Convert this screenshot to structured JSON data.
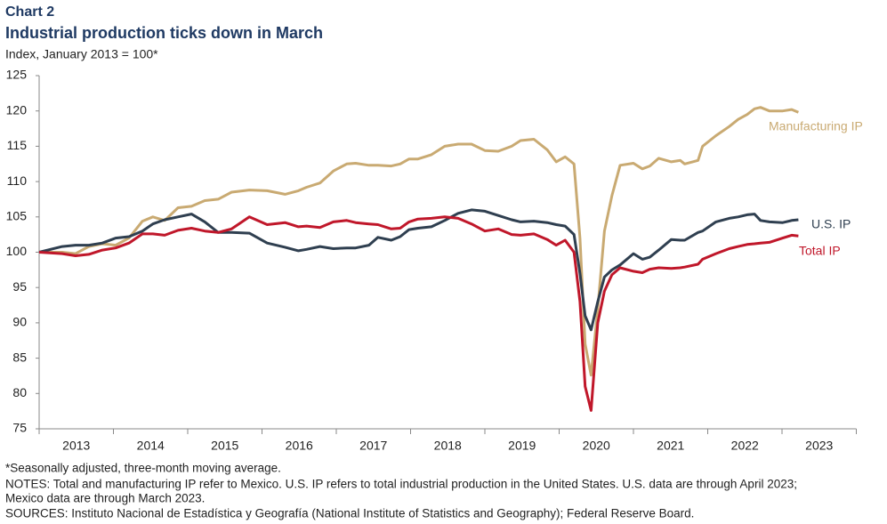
{
  "chart_data": {
    "type": "line",
    "chart_label": "Chart 2",
    "title": "Industrial production ticks down in March",
    "subtitle": "Index, January 2013 = 100*",
    "x": [
      2013,
      2013.31,
      2013.49,
      2013.67,
      2013.85,
      2014.03,
      2014.21,
      2014.39,
      2014.53,
      2014.69,
      2014.87,
      2015.05,
      2015.23,
      2015.41,
      2015.59,
      2015.83,
      2016.07,
      2016.31,
      2016.49,
      2016.6,
      2016.78,
      2016.96,
      2017.14,
      2017.26,
      2017.44,
      2017.56,
      2017.74,
      2017.86,
      2017.98,
      2018.1,
      2018.28,
      2018.46,
      2018.64,
      2018.82,
      2019,
      2019.18,
      2019.36,
      2019.48,
      2019.66,
      2019.84,
      2019.96,
      2020.08,
      2020.2,
      2020.28,
      2020.35,
      2020.43,
      2020.52,
      2020.61,
      2020.71,
      2020.82,
      2021,
      2021.12,
      2021.22,
      2021.34,
      2021.51,
      2021.63,
      2021.69,
      2021.87,
      2021.93,
      2022.11,
      2022.29,
      2022.41,
      2022.53,
      2022.63,
      2022.71,
      2022.83,
      2023.01,
      2023.13,
      2023.22
    ],
    "series": [
      {
        "name": "Manufacturing IP",
        "color": "#c9aa72",
        "values": [
          100,
          100,
          99.8,
          100.8,
          101.2,
          101,
          102,
          104.4,
          105,
          104.5,
          106.3,
          106.5,
          107.3,
          107.5,
          108.5,
          108.8,
          108.7,
          108.2,
          108.7,
          109.2,
          109.8,
          111.5,
          112.5,
          112.6,
          112.3,
          112.3,
          112.2,
          112.5,
          113.2,
          113.2,
          113.8,
          115,
          115.3,
          115.3,
          114.4,
          114.3,
          115,
          115.8,
          116,
          114.5,
          112.8,
          113.5,
          112.5,
          102,
          87,
          82.6,
          92,
          103,
          108,
          112.3,
          112.6,
          111.8,
          112.2,
          113.3,
          112.8,
          113,
          112.5,
          113,
          115,
          116.5,
          117.8,
          118.8,
          119.5,
          120.3,
          120.5,
          120,
          120,
          120.2,
          119.8
        ]
      },
      {
        "name": "U.S. IP",
        "color": "#2f3f50",
        "values": [
          100,
          100.8,
          101,
          101,
          101.3,
          102,
          102.2,
          103,
          104,
          104.6,
          105,
          105.4,
          104.3,
          102.8,
          102.8,
          102.7,
          101.3,
          100.7,
          100.2,
          100.4,
          100.8,
          100.5,
          100.6,
          100.6,
          101,
          102.1,
          101.7,
          102.2,
          103.2,
          103.4,
          103.6,
          104.5,
          105.5,
          106,
          105.8,
          105.2,
          104.6,
          104.3,
          104.4,
          104.2,
          103.9,
          103.7,
          102.5,
          97,
          91,
          89,
          93,
          96.5,
          97.5,
          98.2,
          99.8,
          99,
          99.3,
          100.3,
          101.8,
          101.7,
          101.7,
          102.8,
          103,
          104.3,
          104.8,
          105,
          105.3,
          105.4,
          104.5,
          104.3,
          104.2,
          104.5,
          104.6
        ]
      },
      {
        "name": "Total IP",
        "color": "#c0172a",
        "values": [
          100,
          99.8,
          99.5,
          99.7,
          100.3,
          100.6,
          101.3,
          102.6,
          102.6,
          102.4,
          103.1,
          103.4,
          103,
          102.8,
          103.3,
          105,
          103.9,
          104.2,
          103.6,
          103.7,
          103.5,
          104.3,
          104.5,
          104.2,
          104,
          103.9,
          103.3,
          103.4,
          104.3,
          104.7,
          104.8,
          105,
          104.8,
          104,
          103,
          103.3,
          102.5,
          102.4,
          102.6,
          101.8,
          101,
          101.7,
          100,
          93,
          81,
          77.6,
          90,
          94.5,
          96.8,
          97.8,
          97.3,
          97.1,
          97.6,
          97.8,
          97.7,
          97.8,
          97.9,
          98.3,
          99,
          99.8,
          100.5,
          100.8,
          101.1,
          101.2,
          101.3,
          101.4,
          102,
          102.4,
          102.3
        ]
      }
    ],
    "xlim": [
      2013,
      2024
    ],
    "xticks": [
      {
        "value": 2013.5,
        "label": "2013"
      },
      {
        "value": 2014.5,
        "label": "2014"
      },
      {
        "value": 2015.5,
        "label": "2015"
      },
      {
        "value": 2016.5,
        "label": "2016"
      },
      {
        "value": 2017.5,
        "label": "2017"
      },
      {
        "value": 2018.5,
        "label": "2018"
      },
      {
        "value": 2019.5,
        "label": "2019"
      },
      {
        "value": 2020.5,
        "label": "2020"
      },
      {
        "value": 2021.5,
        "label": "2021"
      },
      {
        "value": 2022.5,
        "label": "2022"
      },
      {
        "value": 2023.5,
        "label": "2023"
      }
    ],
    "ylim": [
      75,
      125
    ],
    "yticks": [
      75,
      80,
      85,
      90,
      95,
      100,
      105,
      110,
      115,
      120,
      125
    ],
    "grid": false,
    "notes": [
      "*Seasonally adjusted, three-month moving average.",
      "NOTES: Total and manufacturing IP refer to Mexico. U.S. IP refers to total industrial production in the United States. U.S. data are through April 2023;",
      "Mexico data are through March 2023.",
      "SOURCES: Instituto Nacional de Estadística y Geografía (National Institute of Statistics and Geography); Federal Reserve Board."
    ]
  }
}
